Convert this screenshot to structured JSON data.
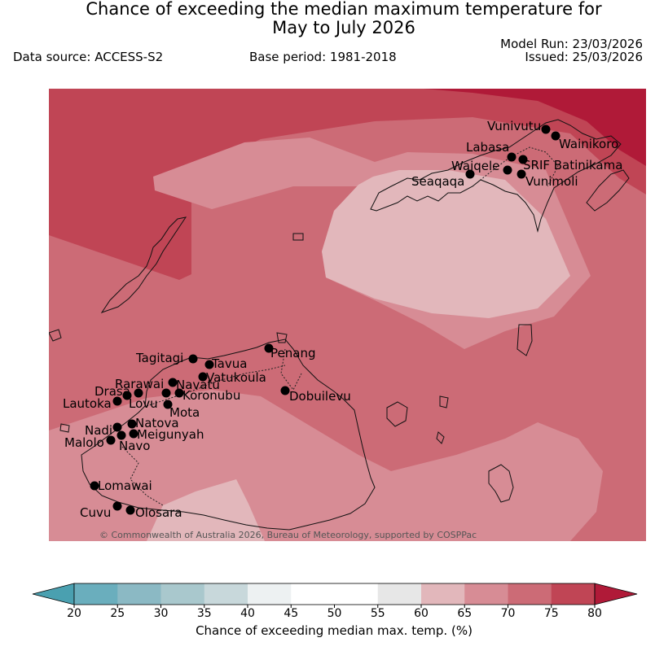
{
  "header": {
    "title_line1": "Chance of exceeding the median maximum temperature for",
    "title_line2": "May to July 2026",
    "data_source": "Data source: ACCESS-S2",
    "base_period": "Base period: 1981-2018",
    "model_run": "Model Run: 23/03/2026",
    "issued": "Issued: 25/03/2026"
  },
  "map": {
    "copyright": "© Commonwealth of Australia 2026, Bureau of Meteorology, supported by COSPPac",
    "colors": {
      "band_75_80": "#c04555",
      "band_70_75": "#cc6b76",
      "band_65_70": "#d78c95",
      "band_60_65": "#e2b7bb",
      "band_gt_80": "#b01a38"
    },
    "towns": [
      {
        "name": "Vunivutu"
      },
      {
        "name": "Wainikoro"
      },
      {
        "name": "Labasa"
      },
      {
        "name": "SRIF Batinikama"
      },
      {
        "name": "Waiqele"
      },
      {
        "name": "Seaqaqa"
      },
      {
        "name": "Vunimoli"
      },
      {
        "name": "Tagitagi"
      },
      {
        "name": "Tavua"
      },
      {
        "name": "Penang"
      },
      {
        "name": "Vatukoula"
      },
      {
        "name": "Rarawai"
      },
      {
        "name": "Navatu"
      },
      {
        "name": "Drasa"
      },
      {
        "name": "Koronubu"
      },
      {
        "name": "Dobuilevu"
      },
      {
        "name": "Lautoka"
      },
      {
        "name": "Lovu"
      },
      {
        "name": "Mota"
      },
      {
        "name": "Natova"
      },
      {
        "name": "Nadi"
      },
      {
        "name": "Meigunyah"
      },
      {
        "name": "Malolo"
      },
      {
        "name": "Navo"
      },
      {
        "name": "Lomawai"
      },
      {
        "name": "Cuvu"
      },
      {
        "name": "Olosara"
      }
    ]
  },
  "colorbar": {
    "title": "Chance of exceeding median max. temp. (%)",
    "ticks": [
      "20",
      "25",
      "30",
      "35",
      "40",
      "45",
      "50",
      "55",
      "60",
      "65",
      "70",
      "75",
      "80"
    ],
    "colors": [
      "#6aaebd",
      "#8bb9c4",
      "#a9c8cd",
      "#c8d8db",
      "#edf1f2",
      "#ffffff",
      "#ffffff",
      "#e7e7e7",
      "#e2b7bb",
      "#d78c95",
      "#cc6b76",
      "#c04555"
    ],
    "under_color": "#4aa0b0",
    "over_color": "#b01a38"
  }
}
